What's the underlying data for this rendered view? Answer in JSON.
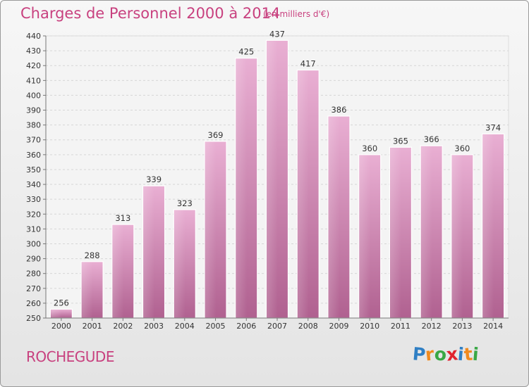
{
  "chart_data": {
    "type": "bar",
    "title": "Charges de Personnel 2000 à 2014",
    "subtitle": "(en milliers d'€)",
    "categories": [
      "2000",
      "2001",
      "2002",
      "2003",
      "2004",
      "2005",
      "2006",
      "2007",
      "2008",
      "2009",
      "2010",
      "2011",
      "2012",
      "2013",
      "2014"
    ],
    "values": [
      256,
      288,
      313,
      339,
      323,
      369,
      425,
      437,
      417,
      386,
      360,
      365,
      366,
      360,
      374
    ],
    "ylim": [
      250,
      440
    ],
    "yticks": [
      250,
      260,
      270,
      280,
      290,
      300,
      310,
      320,
      330,
      340,
      350,
      360,
      370,
      380,
      390,
      400,
      410,
      420,
      430,
      440
    ],
    "grid": true,
    "bar_color": "#e3a6cc"
  },
  "footer": {
    "place": "ROCHEGUDE",
    "logo_letters": [
      "P",
      "r",
      "o",
      "x",
      "i",
      "t",
      "i"
    ],
    "logo_colors": [
      "#2f7fc4",
      "#f08a1e",
      "#39a845",
      "#e0232e",
      "#2f7fc4",
      "#f08a1e",
      "#39a845"
    ]
  }
}
